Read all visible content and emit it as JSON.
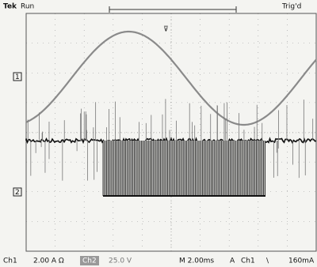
{
  "header": {
    "brand": "Tek",
    "state": "Run",
    "trigger_status": "Trig'd"
  },
  "markers": {
    "ch1": "1",
    "ch2": "2"
  },
  "footer": {
    "ch1": "Ch1",
    "ch1_scale": "2.00 A Ω",
    "ch2": "Ch2",
    "ch2_scale": "25.0 V",
    "timebase": "M 2.00ms",
    "trig_label": "A",
    "trig_source": "Ch1",
    "trig_slope": "\\",
    "trig_level": "160mA"
  }
}
